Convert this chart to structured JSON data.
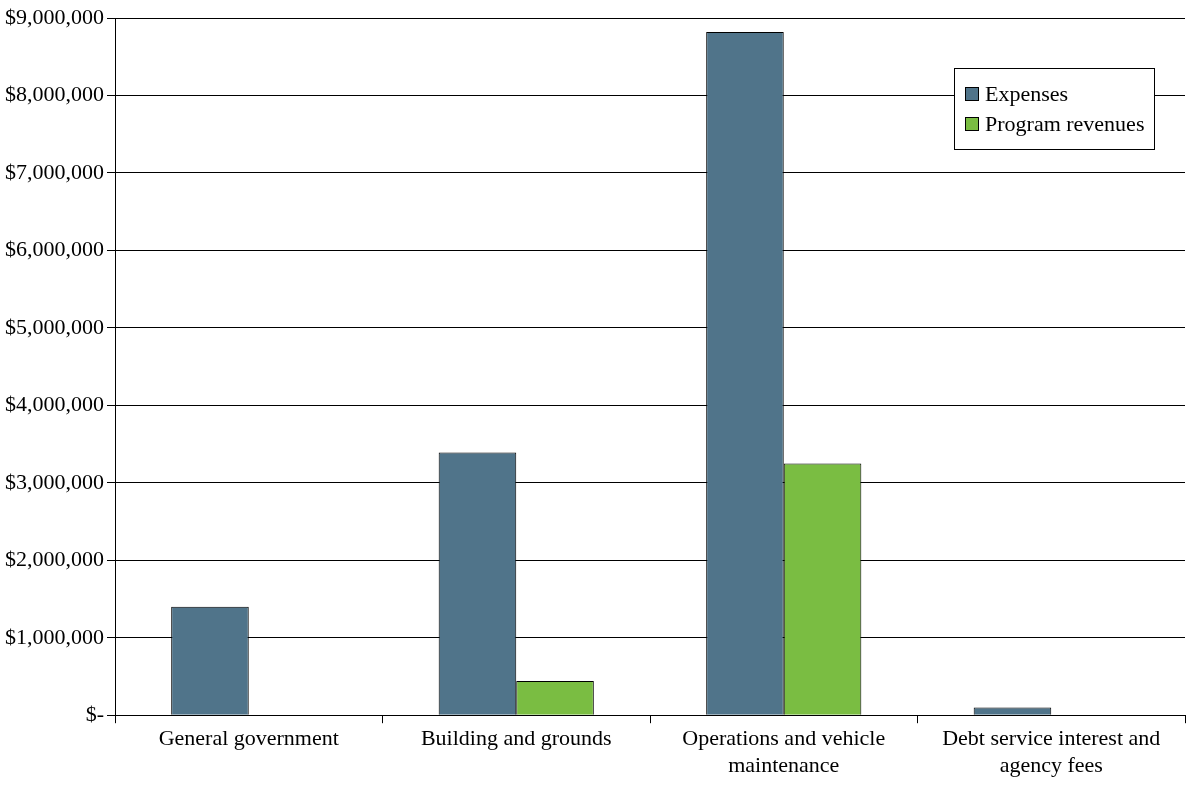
{
  "chart_data": {
    "type": "bar",
    "categories": [
      "General government",
      "Building and grounds",
      "Operations and vehicle maintenance",
      "Debt service interest and agency fees"
    ],
    "series": [
      {
        "name": "Expenses",
        "color": "#50748a",
        "values": [
          1400000,
          3390000,
          8820000,
          100000
        ]
      },
      {
        "name": "Program revenues",
        "color": "#7abd42",
        "values": [
          0,
          440000,
          3250000,
          0
        ]
      }
    ],
    "ylim": [
      0,
      9000000
    ],
    "yticks": [
      {
        "value": 0,
        "label": "$-"
      },
      {
        "value": 1000000,
        "label": "$1,000,000"
      },
      {
        "value": 2000000,
        "label": "$2,000,000"
      },
      {
        "value": 3000000,
        "label": "$3,000,000"
      },
      {
        "value": 4000000,
        "label": "$4,000,000"
      },
      {
        "value": 5000000,
        "label": "$5,000,000"
      },
      {
        "value": 6000000,
        "label": "$6,000,000"
      },
      {
        "value": 7000000,
        "label": "$7,000,000"
      },
      {
        "value": 8000000,
        "label": "$8,000,000"
      },
      {
        "value": 9000000,
        "label": "$9,000,000"
      }
    ],
    "grid": "y",
    "legend": "top right"
  }
}
